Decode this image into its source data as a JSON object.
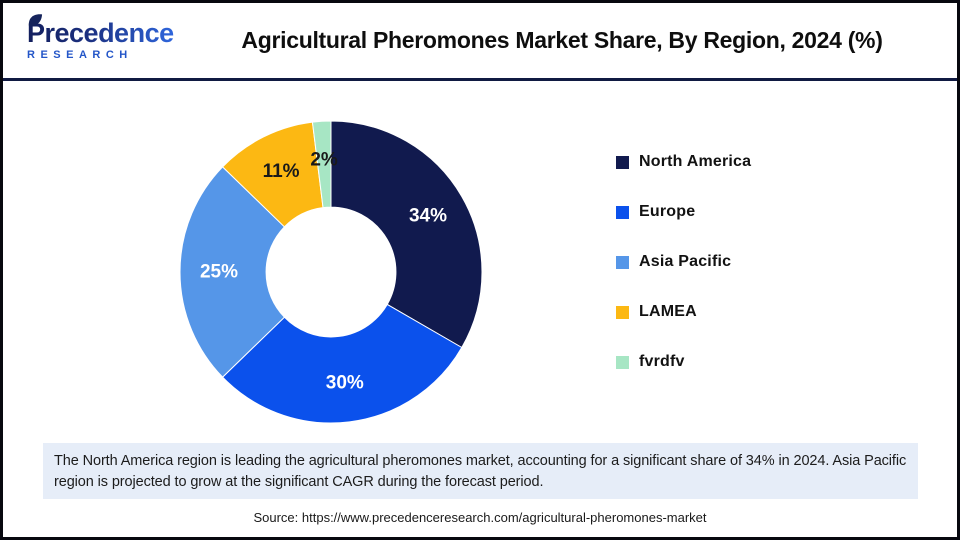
{
  "logo": {
    "name": "Precedence",
    "subtitle": "RESEARCH",
    "leaf_color": "#16245c"
  },
  "header": {
    "title": "Agricultural Pheromones Market Share, By Region, 2024 (%)"
  },
  "chart_data": {
    "type": "pie",
    "subtype": "donut",
    "title": "Agricultural Pheromones Market Share, By Region, 2024 (%)",
    "unit": "%",
    "categories": [
      "North America",
      "Europe",
      "Asia Pacific",
      "LAMEA",
      "fvrdfv"
    ],
    "values": [
      34,
      30,
      25,
      11,
      2
    ],
    "labels": [
      "34%",
      "30%",
      "25%",
      "11%",
      "2%"
    ],
    "colors": [
      "#111a4e",
      "#0b51ec",
      "#5596e8",
      "#fcb813",
      "#a7e6c4"
    ],
    "label_colors": [
      "#ffffff",
      "#ffffff",
      "#ffffff",
      "#1a1a1a",
      "#1a1a1a"
    ],
    "start_angle_deg": 0,
    "direction": "clockwise",
    "inner_radius_ratio": 0.43,
    "slice_border_color": "#ffffff",
    "legend_position": "right"
  },
  "note": {
    "text": "The North America region is leading the agricultural pheromones market, accounting for a significant share of 34% in 2024. Asia Pacific region is projected to grow at the significant CAGR during the forecast period.",
    "background": "#e6edf8"
  },
  "source": {
    "text": "Source: https://www.precedenceresearch.com/agricultural-pheromones-market"
  }
}
